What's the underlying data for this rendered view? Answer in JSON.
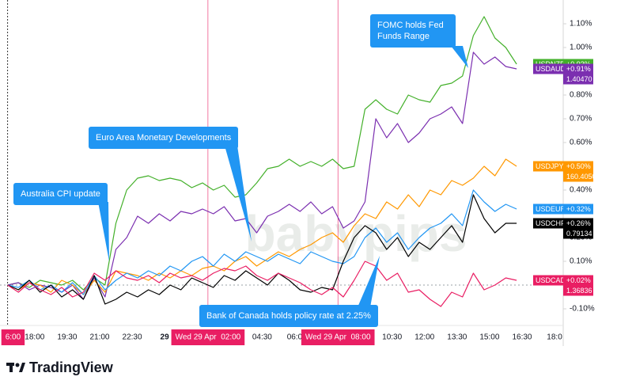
{
  "chart_data": {
    "type": "line",
    "x": [
      16.75,
      17.25,
      17.75,
      18.25,
      18.75,
      19.25,
      19.75,
      20.25,
      20.75,
      21.25,
      21.75,
      22.25,
      22.75,
      23.25,
      23.75,
      24.25,
      24.75,
      25.25,
      25.75,
      26.25,
      26.75,
      27.25,
      27.75,
      28.25,
      28.75,
      29.25,
      29.75,
      30.25,
      30.75,
      31.25,
      31.75,
      32.25,
      32.75,
      33.25,
      33.75,
      34.25,
      34.75,
      35.25,
      35.75,
      36.25,
      36.75,
      37.25,
      37.75,
      38.25,
      38.75,
      39.25,
      39.75,
      40.25
    ],
    "xlim": [
      16.4,
      42.4
    ],
    "xticks": [
      {
        "value": 17,
        "label": "6:00",
        "highlight": true
      },
      {
        "value": 18,
        "label": "18:00"
      },
      {
        "value": 19.5,
        "label": "19:30"
      },
      {
        "value": 21,
        "label": "21:00"
      },
      {
        "value": 22.5,
        "label": "22:30"
      },
      {
        "value": 24,
        "label": "29",
        "bold": true
      },
      {
        "value": 26,
        "label": "Wed 29 Apr  02:00",
        "highlight": true
      },
      {
        "value": 28.5,
        "label": "04:30"
      },
      {
        "value": 30,
        "label": "06:0"
      },
      {
        "value": 32,
        "label": "Wed 29 Apr  08:00",
        "highlight": true
      },
      {
        "value": 34.5,
        "label": "10:30"
      },
      {
        "value": 36,
        "label": "12:00"
      },
      {
        "value": 37.5,
        "label": "13:30"
      },
      {
        "value": 39,
        "label": "15:00"
      },
      {
        "value": 40.5,
        "label": "16:30"
      },
      {
        "value": 42,
        "label": "18:0"
      }
    ],
    "ylim": [
      -0.17,
      1.2
    ],
    "yticks": [
      {
        "value": -0.1,
        "label": "-0.10%"
      },
      {
        "value": 0.1,
        "label": "0.10%"
      },
      {
        "value": 0.2,
        "label": "0.20%"
      },
      {
        "value": 0.4,
        "label": "0.40%"
      },
      {
        "value": 0.6,
        "label": "0.60%"
      },
      {
        "value": 0.7,
        "label": "0.70%"
      },
      {
        "value": 0.8,
        "label": "0.80%"
      },
      {
        "value": 1.0,
        "label": "1.00%"
      },
      {
        "value": 1.1,
        "label": "1.10%"
      }
    ],
    "series": [
      {
        "name": "USDNZD",
        "color": "#43b02a",
        "last_label": "+0.93%",
        "values": [
          0,
          0.01,
          -0.01,
          0.02,
          0.01,
          0,
          0.02,
          -0.02,
          0.03,
          0,
          0.26,
          0.4,
          0.45,
          0.46,
          0.44,
          0.45,
          0.44,
          0.41,
          0.43,
          0.4,
          0.42,
          0.37,
          0.38,
          0.43,
          0.49,
          0.5,
          0.53,
          0.5,
          0.52,
          0.5,
          0.53,
          0.49,
          0.5,
          0.74,
          0.78,
          0.74,
          0.72,
          0.8,
          0.78,
          0.77,
          0.84,
          0.85,
          0.88,
          1.05,
          1.13,
          1.04,
          1.0,
          0.93
        ]
      },
      {
        "name": "USDAUD",
        "color": "#7b2fb0",
        "last_label": "+0.91%",
        "price": "1.40470",
        "values": [
          0,
          0.01,
          -0.02,
          0,
          -0.01,
          -0.03,
          0,
          -0.06,
          0.03,
          -0.05,
          0.15,
          0.2,
          0.29,
          0.26,
          0.3,
          0.27,
          0.31,
          0.3,
          0.32,
          0.3,
          0.33,
          0.27,
          0.28,
          0.22,
          0.29,
          0.31,
          0.34,
          0.31,
          0.35,
          0.3,
          0.33,
          0.24,
          0.27,
          0.35,
          0.7,
          0.62,
          0.68,
          0.6,
          0.64,
          0.7,
          0.72,
          0.75,
          0.68,
          0.98,
          0.93,
          0.96,
          0.92,
          0.91
        ]
      },
      {
        "name": "USDJPY",
        "color": "#ff9800",
        "last_label": "+0.50%",
        "price": "160.40500",
        "values": [
          0,
          -0.02,
          0.01,
          0,
          -0.03,
          0.02,
          0,
          -0.04,
          0.02,
          -0.03,
          0.06,
          0.05,
          0.04,
          0.02,
          0.05,
          0.03,
          0.06,
          0.04,
          0.07,
          0.08,
          0.06,
          0.1,
          0.12,
          0.08,
          0.11,
          0.14,
          0.12,
          0.15,
          0.17,
          0.2,
          0.22,
          0.18,
          0.25,
          0.3,
          0.28,
          0.35,
          0.32,
          0.38,
          0.33,
          0.4,
          0.38,
          0.44,
          0.42,
          0.45,
          0.5,
          0.46,
          0.53,
          0.5
        ]
      },
      {
        "name": "USDEUR",
        "color": "#2196f3",
        "last_label": "+0.32%",
        "values": [
          0,
          -0.01,
          0.02,
          -0.02,
          0,
          -0.03,
          0.01,
          -0.04,
          0.04,
          -0.02,
          0.02,
          0.05,
          0.03,
          0.06,
          0.04,
          0.08,
          0.06,
          0.1,
          0.12,
          0.08,
          0.13,
          0.1,
          0.14,
          0.12,
          0.1,
          0.13,
          0.11,
          0.09,
          0.14,
          0.12,
          0.1,
          0.09,
          0.12,
          0.2,
          0.24,
          0.18,
          0.22,
          0.15,
          0.2,
          0.24,
          0.26,
          0.3,
          0.25,
          0.4,
          0.35,
          0.31,
          0.34,
          0.32
        ]
      },
      {
        "name": "USDCHF",
        "color": "#000000",
        "last_label": "+0.26%",
        "price": "0.79134",
        "values": [
          0,
          -0.02,
          0.02,
          -0.03,
          0,
          -0.05,
          -0.02,
          -0.06,
          0.04,
          -0.08,
          -0.06,
          -0.03,
          -0.05,
          -0.02,
          -0.04,
          0,
          -0.02,
          0.03,
          0.01,
          -0.01,
          0.04,
          0.02,
          0.06,
          0.03,
          0.0,
          0.05,
          0.02,
          -0.02,
          -0.03,
          -0.01,
          -0.02,
          0.1,
          0.2,
          0.25,
          0.22,
          0.15,
          0.2,
          0.12,
          0.18,
          0.15,
          0.2,
          0.25,
          0.18,
          0.38,
          0.28,
          0.22,
          0.26,
          0.26
        ]
      },
      {
        "name": "USDCAD",
        "color": "#e91e63",
        "last_label": "+0.02%",
        "price": "1.36836",
        "values": [
          0,
          -0.03,
          0.01,
          -0.02,
          -0.04,
          -0.01,
          -0.05,
          -0.03,
          0.05,
          0.02,
          0.06,
          0.03,
          0.02,
          0.04,
          0.01,
          0.05,
          0.03,
          0.04,
          0.02,
          0.05,
          0.07,
          0.06,
          0.08,
          0.04,
          0.02,
          0.05,
          0.03,
          0.01,
          -0.02,
          -0.04,
          -0.01,
          -0.05,
          0.02,
          0.1,
          0.08,
          0.02,
          0.05,
          -0.03,
          -0.02,
          -0.06,
          -0.09,
          -0.03,
          -0.05,
          0.05,
          -0.02,
          0.0,
          0.03,
          0.02
        ]
      }
    ],
    "annotations": [
      {
        "text": "Australia CPI update"
      },
      {
        "text": "Euro Area Monetary Developments"
      },
      {
        "text": "FOMC holds Fed Funds Range"
      },
      {
        "text": "Bank of Canada holds policy rate at 2.25%"
      }
    ],
    "watermark": "babypips",
    "logo": "TradingView"
  }
}
